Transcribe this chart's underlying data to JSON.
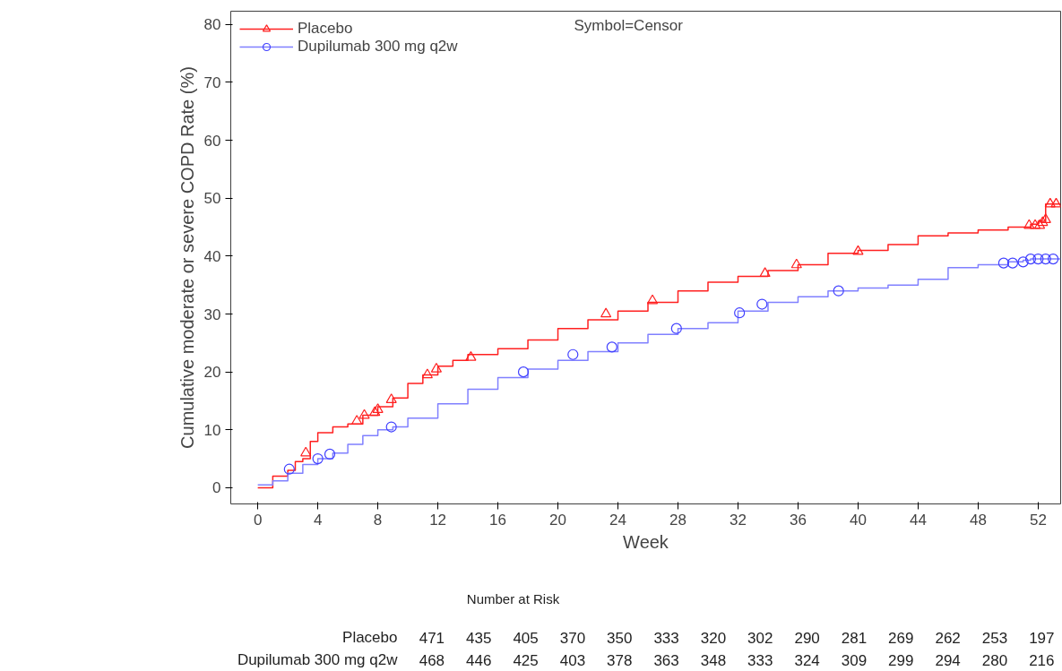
{
  "chart_data": {
    "type": "step",
    "xlabel": "Week",
    "ylabel": "Cumulative moderate or severe COPD Rate (%)",
    "xlim": [
      -1.8,
      53.5
    ],
    "ylim": [
      -2.8,
      82.3
    ],
    "xticks": [
      0,
      4,
      8,
      12,
      16,
      20,
      24,
      28,
      32,
      36,
      40,
      44,
      48,
      52
    ],
    "yticks": [
      0,
      10,
      20,
      30,
      40,
      50,
      60,
      70,
      80
    ],
    "grid": false,
    "legend": "top left",
    "series": [
      {
        "name": "Placebo",
        "color": "#ff2020",
        "marker": "none",
        "x": [
          0,
          1,
          2,
          2.5,
          3,
          3.5,
          4,
          5,
          6,
          7,
          8,
          9,
          10,
          11,
          12,
          13,
          14,
          16,
          18,
          20,
          22,
          24,
          26,
          28,
          30,
          32,
          34,
          36,
          38,
          40,
          42,
          44,
          46,
          48,
          50,
          51.5,
          52,
          52.5,
          53.5
        ],
        "values": [
          0,
          2,
          3,
          4.5,
          5,
          8,
          9.5,
          10.5,
          11,
          12.5,
          14,
          15.5,
          18,
          19.5,
          21,
          22,
          23,
          24,
          25.5,
          27.5,
          29,
          30.5,
          32,
          34,
          35.5,
          36.5,
          37.5,
          38.5,
          40.5,
          41,
          42,
          43.5,
          44,
          44.5,
          45,
          45.5,
          46,
          49,
          49
        ]
      },
      {
        "type": "scatter",
        "color": "#ff2020",
        "marker": "triangle",
        "x": [
          3.2,
          6.6,
          7.1,
          7.8,
          8,
          8.9,
          11.3,
          11.9,
          14.2,
          23.2,
          26.3,
          33.8,
          35.9,
          40,
          51.4,
          51.8,
          52.1,
          52.3,
          52.5,
          52.8,
          53.2
        ],
        "values": [
          6,
          11.5,
          12.5,
          13,
          13.5,
          15.2,
          19.5,
          20.5,
          22.5,
          30,
          32.3,
          37,
          38.5,
          40.8,
          45.3,
          45.3,
          45.3,
          45.8,
          46.3,
          49,
          49
        ]
      },
      {
        "name": "Dupilumab 300 mg q2w",
        "color": "#8080ff",
        "marker": "none",
        "x": [
          0,
          1,
          2,
          3,
          4,
          5,
          6,
          7,
          8,
          9,
          10,
          12,
          14,
          16,
          18,
          20,
          22,
          24,
          26,
          28,
          30,
          32,
          34,
          36,
          38,
          40,
          42,
          44,
          46,
          48,
          50,
          51,
          51.5,
          53.5
        ],
        "values": [
          0.5,
          1.2,
          2.5,
          4,
          5,
          6,
          7.5,
          9,
          10,
          10.5,
          12,
          14.5,
          17,
          19,
          20.5,
          22,
          23.5,
          25,
          26.5,
          27.5,
          28.5,
          30.5,
          32,
          33,
          34,
          34.5,
          35,
          36,
          38,
          38.5,
          39,
          39.3,
          39.5,
          39.5
        ]
      },
      {
        "type": "scatter",
        "color": "#4040ff",
        "marker": "circle",
        "x": [
          2.1,
          4,
          4.8,
          8.9,
          17.7,
          21,
          23.6,
          27.9,
          32.1,
          33.6,
          38.7,
          49.7,
          50.3,
          51,
          51.5,
          52,
          52.5,
          53
        ],
        "values": [
          3.2,
          5,
          5.8,
          10.5,
          20,
          23,
          24.3,
          27.5,
          30.2,
          31.7,
          34,
          38.8,
          38.8,
          39,
          39.5,
          39.5,
          39.5,
          39.5
        ]
      }
    ],
    "annotations": [
      "Symbol=Censor",
      "Number at Risk",
      "Placebo",
      "471",
      "435",
      "405",
      "370",
      "350",
      "333",
      "320",
      "302",
      "290",
      "281",
      "269",
      "262",
      "253",
      "197",
      "Dupilumab 300 mg q2w",
      "468",
      "446",
      "425",
      "403",
      "378",
      "363",
      "348",
      "333",
      "324",
      "309",
      "299",
      "294",
      "280",
      "216"
    ]
  }
}
